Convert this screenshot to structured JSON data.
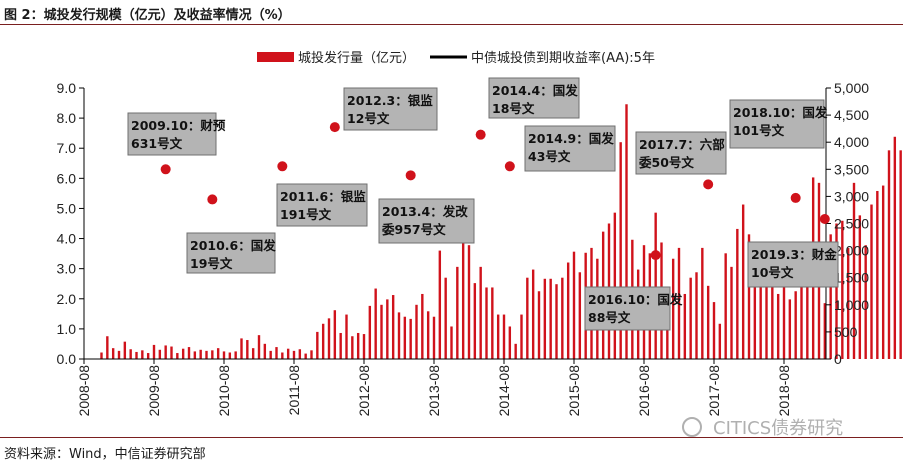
{
  "figure": {
    "title": "图 2：城投发行规模（亿元）及收益率情况（%）",
    "source": "资料来源：Wind，中信证券研究部",
    "watermark": "CITICS债券研究"
  },
  "colors": {
    "bar": "#d0121b",
    "dot": "#d0121b",
    "line": "#000000",
    "rule": "#7a1f1f"
  },
  "chart_data": {
    "type": "bar",
    "legend_position": "top",
    "grid": false,
    "series": [
      {
        "name": "城投发行量（亿元）",
        "axis": "right",
        "type": "bar",
        "color": "#d0121b",
        "values": [
          120,
          420,
          200,
          150,
          320,
          180,
          130,
          160,
          110,
          260,
          170,
          250,
          230,
          110,
          190,
          220,
          140,
          170,
          150,
          160,
          200,
          140,
          120,
          140,
          380,
          350,
          200,
          440,
          280,
          150,
          220,
          120,
          190,
          150,
          180,
          100,
          160,
          500,
          650,
          750,
          900,
          480,
          820,
          420,
          480,
          460,
          980,
          1300,
          1000,
          1100,
          1180,
          860,
          780,
          740,
          1000,
          1200,
          880,
          780,
          2000,
          1500,
          600,
          1700,
          2500,
          2100,
          1400,
          1700,
          1320,
          1320,
          820,
          820,
          600,
          280,
          820,
          1500,
          1650,
          1250,
          1480,
          1480,
          1380,
          1500,
          1780,
          1980,
          1600,
          1960,
          2050,
          1850,
          2350,
          2500,
          2700,
          4000,
          4700,
          2200,
          1650,
          2100,
          1950,
          2700,
          2150,
          900,
          1850,
          2050,
          1200,
          1500,
          1600,
          2050,
          1350,
          1050,
          650,
          1950,
          1700,
          2400,
          2850,
          2300,
          2100,
          1750,
          1850,
          1400,
          1200,
          1350,
          1100,
          1250,
          1350,
          1480,
          3350,
          3250,
          1030,
          2300,
          2500,
          2550,
          2050,
          3250,
          2650,
          2100,
          2850,
          3100,
          3200,
          3850,
          4100,
          3850,
          3650,
          3000,
          3450
        ]
      },
      {
        "name": "中债城投债到期收益率(AA):5年",
        "axis": "left",
        "type": "line",
        "color": "#000000",
        "values": []
      }
    ],
    "event_points": [
      {
        "date": "2009-10",
        "y": 6.3
      },
      {
        "date": "2010-06",
        "y": 5.3
      },
      {
        "date": "2011-06",
        "y": 6.4
      },
      {
        "date": "2012-03",
        "y": 7.7
      },
      {
        "date": "2013-04",
        "y": 6.1
      },
      {
        "date": "2014-04",
        "y": 7.45
      },
      {
        "date": "2014-09",
        "y": 6.4
      },
      {
        "date": "2016-10",
        "y": 3.45
      },
      {
        "date": "2017-07",
        "y": 5.8
      },
      {
        "date": "2018-10",
        "y": 5.35
      },
      {
        "date": "2019-03",
        "y": 4.65
      }
    ],
    "annotations": [
      {
        "line1": "2009.10：财预",
        "line2": "631号文"
      },
      {
        "line1": "2010.6：国发",
        "line2": "19号文"
      },
      {
        "line1": "2011.6：银监",
        "line2": "191号文"
      },
      {
        "line1": "2012.3：银监",
        "line2": "12号文"
      },
      {
        "line1": "2013.4：发改",
        "line2": "委957号文"
      },
      {
        "line1": "2014.4：国发",
        "line2": "18号文"
      },
      {
        "line1": "2014.9：国发",
        "line2": "43号文"
      },
      {
        "line1": "2016.10：国发",
        "line2": "88号文"
      },
      {
        "line1": "2017.7：六部",
        "line2": "委50号文"
      },
      {
        "line1": "2018.10：国发",
        "line2": "101号文"
      },
      {
        "line1": "2019.3：财金",
        "line2": "10号文"
      }
    ],
    "x_axis": {
      "ticks": [
        "2008-08",
        "2009-08",
        "2010-08",
        "2011-08",
        "2012-08",
        "2013-08",
        "2014-08",
        "2015-08",
        "2016-08",
        "2017-08",
        "2018-08"
      ],
      "range": [
        "2008-08",
        "2019-04"
      ]
    },
    "y_left": {
      "ticks": [
        "0.0",
        "1.0",
        "2.0",
        "3.0",
        "4.0",
        "5.0",
        "6.0",
        "7.0",
        "8.0",
        "9.0"
      ],
      "ylim": [
        0,
        9
      ]
    },
    "y_right": {
      "ticks": [
        "0",
        "500",
        "1,000",
        "1,500",
        "2,000",
        "2,500",
        "3,000",
        "3,500",
        "4,000",
        "4,500",
        "5,000"
      ],
      "ylim": [
        0,
        5000
      ]
    }
  }
}
